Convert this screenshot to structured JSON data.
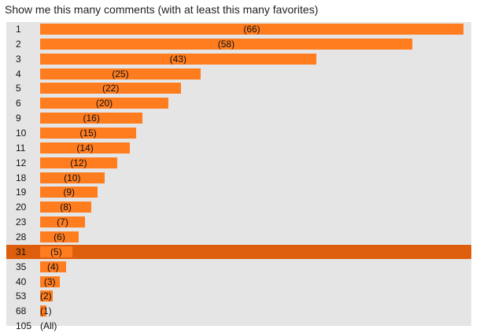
{
  "title": "Show me this many comments (with at least this many favorites)",
  "selected_index": 15,
  "colors": {
    "bar": "#ff7c1f",
    "selected_row": "#dd5e0c",
    "list_background": "#e5e5e5"
  },
  "rows": [
    {
      "label": "1",
      "count": 66,
      "count_text": "(66)"
    },
    {
      "label": "2",
      "count": 58,
      "count_text": "(58)"
    },
    {
      "label": "3",
      "count": 43,
      "count_text": "(43)"
    },
    {
      "label": "4",
      "count": 25,
      "count_text": "(25)"
    },
    {
      "label": "5",
      "count": 22,
      "count_text": "(22)"
    },
    {
      "label": "6",
      "count": 20,
      "count_text": "(20)"
    },
    {
      "label": "9",
      "count": 16,
      "count_text": "(16)"
    },
    {
      "label": "10",
      "count": 15,
      "count_text": "(15)"
    },
    {
      "label": "11",
      "count": 14,
      "count_text": "(14)"
    },
    {
      "label": "12",
      "count": 12,
      "count_text": "(12)"
    },
    {
      "label": "18",
      "count": 10,
      "count_text": "(10)"
    },
    {
      "label": "19",
      "count": 9,
      "count_text": "(9)"
    },
    {
      "label": "20",
      "count": 8,
      "count_text": "(8)"
    },
    {
      "label": "23",
      "count": 7,
      "count_text": "(7)"
    },
    {
      "label": "28",
      "count": 6,
      "count_text": "(6)"
    },
    {
      "label": "31",
      "count": 5,
      "count_text": "(5)"
    },
    {
      "label": "35",
      "count": 4,
      "count_text": "(4)"
    },
    {
      "label": "40",
      "count": 3,
      "count_text": "(3)"
    },
    {
      "label": "53",
      "count": 2,
      "count_text": "(2)"
    },
    {
      "label": "68",
      "count": 1,
      "count_text": "(1)"
    },
    {
      "label": "105",
      "count": 0,
      "count_text": "(All)"
    }
  ]
}
